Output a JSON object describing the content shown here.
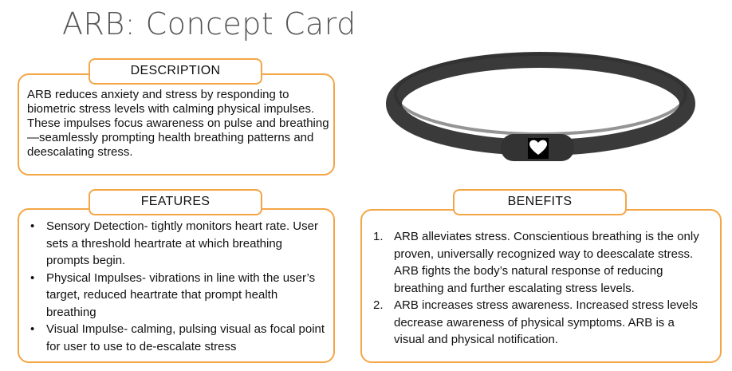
{
  "title": "ARB: Concept Card",
  "description": {
    "heading": "DESCRIPTION",
    "text": "ARB reduces anxiety and stress by responding to biometric stress levels with calming physical impulses. These impulses focus awareness on pulse and breathing—seamlessly prompting health breathing patterns and deescalating stress."
  },
  "features": {
    "heading": "FEATURES",
    "bullet": "•",
    "items": [
      "Sensory Detection- tightly monitors heart rate. User sets a threshold heartrate at which breathing prompts begin.",
      "Physical Impulses- vibrations in line with the user’s target, reduced heartrate that prompt health breathing",
      "Visual Impulse- calming, pulsing visual as focal point for user to use to de-escalate stress"
    ]
  },
  "benefits": {
    "heading": "BENEFITS",
    "items": [
      {
        "number": "1.",
        "text": "ARB alleviates stress.  Conscientious breathing is the only proven, universally recognized way to deescalate stress.  ARB fights the body’s natural response of reducing breathing and further escalating stress levels."
      },
      {
        "number": "2.",
        "text": "ARB increases stress awareness.  Increased stress levels decrease awareness of physical symptoms.  ARB is a visual and physical notification."
      }
    ]
  },
  "wristband": {
    "icon": "heart-icon",
    "band_color": "#3a3a3a",
    "accent_color": "#f4a646"
  }
}
